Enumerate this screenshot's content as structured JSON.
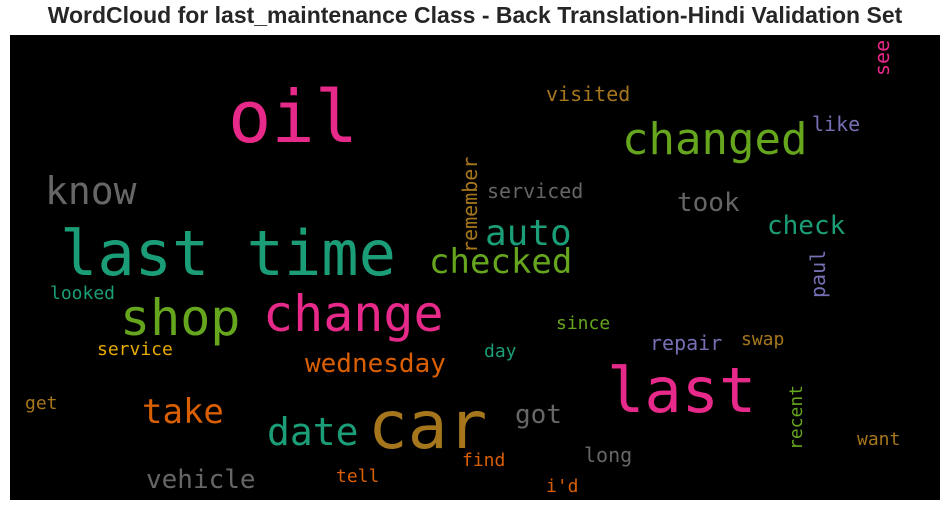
{
  "title": "WordCloud for last_maintenance Class - Back Translation-Hindi Validation Set",
  "words": [
    {
      "text": "oil",
      "color": "#e7298a"
    },
    {
      "text": "last time",
      "color": "#1b9e77"
    },
    {
      "text": "car",
      "color": "#a6761d"
    },
    {
      "text": "last",
      "color": "#e7298a"
    },
    {
      "text": "change",
      "color": "#e7298a"
    },
    {
      "text": "changed",
      "color": "#66a61e"
    },
    {
      "text": "shop",
      "color": "#66a61e"
    },
    {
      "text": "know",
      "color": "#666666"
    },
    {
      "text": "date",
      "color": "#1b9e77"
    },
    {
      "text": "checked",
      "color": "#66a61e"
    },
    {
      "text": "auto",
      "color": "#1b9e77"
    },
    {
      "text": "take",
      "color": "#d95f02"
    },
    {
      "text": "wednesday",
      "color": "#d95f02"
    },
    {
      "text": "vehicle",
      "color": "#666666"
    },
    {
      "text": "took",
      "color": "#666666"
    },
    {
      "text": "check",
      "color": "#1b9e77"
    },
    {
      "text": "got",
      "color": "#666666"
    },
    {
      "text": "visited",
      "color": "#a6761d"
    },
    {
      "text": "serviced",
      "color": "#666666"
    },
    {
      "text": "like",
      "color": "#7570b3"
    },
    {
      "text": "remember",
      "color": "#a6761d"
    },
    {
      "text": "see",
      "color": "#e7298a"
    },
    {
      "text": "paul",
      "color": "#7570b3"
    },
    {
      "text": "looked",
      "color": "#1b9e77"
    },
    {
      "text": "since",
      "color": "#66a61e"
    },
    {
      "text": "service",
      "color": "#e6ab02"
    },
    {
      "text": "day",
      "color": "#1b9e77"
    },
    {
      "text": "repair",
      "color": "#7570b3"
    },
    {
      "text": "swap",
      "color": "#a6761d"
    },
    {
      "text": "recent",
      "color": "#66a61e"
    },
    {
      "text": "want",
      "color": "#a6761d"
    },
    {
      "text": "get",
      "color": "#a6761d"
    },
    {
      "text": "long",
      "color": "#666666"
    },
    {
      "text": "find",
      "color": "#d95f02"
    },
    {
      "text": "tell",
      "color": "#d95f02"
    },
    {
      "text": "i'd",
      "color": "#d95f02"
    }
  ]
}
